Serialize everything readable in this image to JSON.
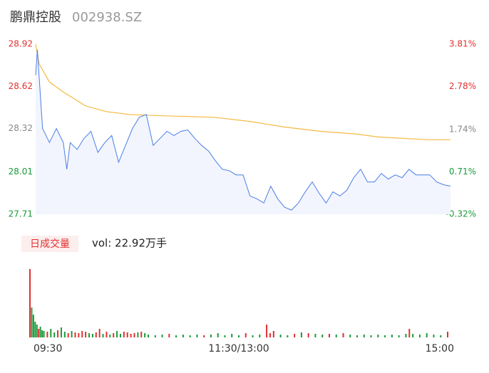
{
  "header": {
    "name": "鹏鼎控股",
    "code": "002938.SZ"
  },
  "chart_data": [
    {
      "type": "line",
      "xlim": [
        0,
        240
      ],
      "ylim": [
        27.71,
        28.92
      ],
      "yticks": [
        27.71,
        28.01,
        28.32,
        28.62,
        28.92
      ],
      "ytick_colors": [
        "#1a9a3a",
        "#1a9a3a",
        "#888888",
        "#e0312f",
        "#e0312f"
      ],
      "y2lim": [
        -0.32,
        3.81
      ],
      "y2ticks": [
        {
          "value": -0.32,
          "label": "-0.32%"
        },
        {
          "value": 0.71,
          "label": "0.71%"
        },
        {
          "value": 1.74,
          "label": "1.74%"
        },
        {
          "value": 2.78,
          "label": "2.78%"
        },
        {
          "value": 3.81,
          "label": "3.81%"
        }
      ],
      "y2tick_colors": [
        "#1a9a3a",
        "#1a9a3a",
        "#888888",
        "#e0312f",
        "#e0312f"
      ],
      "price": {
        "color": "#4a7ee6",
        "fill": "#f2f5fd",
        "x": [
          0,
          1,
          4,
          8,
          12,
          16,
          18,
          20,
          24,
          28,
          32,
          36,
          40,
          44,
          48,
          52,
          56,
          60,
          64,
          68,
          72,
          76,
          80,
          84,
          88,
          92,
          96,
          100,
          104,
          108,
          112,
          116,
          120,
          124,
          128,
          132,
          136,
          140,
          144,
          148,
          152,
          156,
          160,
          164,
          168,
          172,
          176,
          180,
          184,
          188,
          192,
          196,
          200,
          204,
          208,
          212,
          216,
          220,
          224,
          228,
          232,
          236,
          240
        ],
        "values": [
          28.7,
          28.88,
          28.32,
          28.22,
          28.32,
          28.22,
          28.03,
          28.22,
          28.17,
          28.25,
          28.3,
          28.15,
          28.22,
          28.27,
          28.08,
          28.2,
          28.32,
          28.4,
          28.42,
          28.2,
          28.25,
          28.3,
          28.27,
          28.3,
          28.31,
          28.25,
          28.2,
          28.16,
          28.09,
          28.03,
          28.02,
          27.99,
          27.99,
          27.84,
          27.82,
          27.79,
          27.91,
          27.82,
          27.76,
          27.74,
          27.79,
          27.87,
          27.94,
          27.86,
          27.79,
          27.87,
          27.84,
          27.88,
          27.97,
          28.03,
          27.94,
          27.94,
          28.0,
          27.96,
          27.99,
          27.97,
          28.03,
          27.99,
          27.99,
          27.99,
          27.94,
          27.92,
          27.91
        ]
      },
      "average": {
        "color": "#f5b942",
        "x": [
          0,
          2,
          8,
          16,
          29,
          41,
          54,
          74,
          103,
          124,
          144,
          165,
          186,
          198,
          227,
          240
        ],
        "values": [
          28.92,
          28.78,
          28.65,
          28.58,
          28.48,
          28.44,
          28.42,
          28.41,
          28.4,
          28.37,
          28.33,
          28.3,
          28.28,
          28.26,
          28.24,
          28.24
        ]
      }
    },
    {
      "type": "bar",
      "label": "日成交量",
      "volume_text": "vol: 22.92万手",
      "xlim": [
        0,
        240
      ],
      "ylim": [
        0,
        9500
      ],
      "xticks": [
        {
          "value": 0,
          "label": "09:30"
        },
        {
          "value": 120,
          "label": "11:30/13:00"
        },
        {
          "value": 240,
          "label": "15:00"
        }
      ],
      "up_color": "#e0312f",
      "down_color": "#1a9a3a",
      "x": [
        0,
        1,
        2,
        3,
        4,
        5,
        6,
        7,
        8,
        10,
        12,
        14,
        16,
        18,
        20,
        22,
        24,
        26,
        28,
        30,
        32,
        34,
        36,
        38,
        40,
        42,
        44,
        46,
        48,
        50,
        52,
        54,
        56,
        58,
        60,
        62,
        64,
        66,
        68,
        72,
        76,
        80,
        84,
        88,
        92,
        96,
        100,
        104,
        108,
        112,
        116,
        120,
        124,
        128,
        132,
        136,
        138,
        140,
        144,
        148,
        152,
        156,
        160,
        164,
        168,
        172,
        176,
        180,
        184,
        188,
        192,
        196,
        200,
        204,
        208,
        212,
        216,
        218,
        220,
        224,
        228,
        232,
        236,
        240
      ],
      "values": [
        9120,
        3990,
        3040,
        2090,
        1710,
        1140,
        1425,
        950,
        855,
        760,
        1140,
        665,
        950,
        1330,
        760,
        570,
        855,
        665,
        570,
        855,
        760,
        570,
        475,
        665,
        1140,
        475,
        760,
        380,
        570,
        855,
        475,
        760,
        665,
        475,
        570,
        665,
        760,
        570,
        380,
        285,
        380,
        475,
        285,
        380,
        285,
        380,
        285,
        380,
        570,
        285,
        475,
        285,
        570,
        285,
        380,
        1710,
        570,
        855,
        380,
        285,
        475,
        665,
        570,
        475,
        380,
        475,
        380,
        570,
        380,
        285,
        380,
        285,
        380,
        285,
        380,
        285,
        475,
        1140,
        475,
        380,
        570,
        380,
        285,
        760
      ],
      "directions": [
        "up",
        "down",
        "down",
        "down",
        "down",
        "up",
        "down",
        "down",
        "down",
        "up",
        "down",
        "down",
        "up",
        "down",
        "down",
        "up",
        "down",
        "up",
        "up",
        "up",
        "up",
        "down",
        "down",
        "up",
        "up",
        "down",
        "up",
        "down",
        "up",
        "down",
        "down",
        "up",
        "up",
        "up",
        "up",
        "down",
        "up",
        "down",
        "down",
        "down",
        "down",
        "up",
        "down",
        "down",
        "down",
        "down",
        "up",
        "down",
        "down",
        "down",
        "down",
        "down",
        "up",
        "down",
        "down",
        "up",
        "up",
        "up",
        "down",
        "down",
        "up",
        "down",
        "up",
        "down",
        "down",
        "up",
        "down",
        "up",
        "down",
        "down",
        "down",
        "down",
        "down",
        "down",
        "down",
        "down",
        "down",
        "up",
        "down",
        "down",
        "down",
        "down",
        "down",
        "up"
      ]
    }
  ]
}
